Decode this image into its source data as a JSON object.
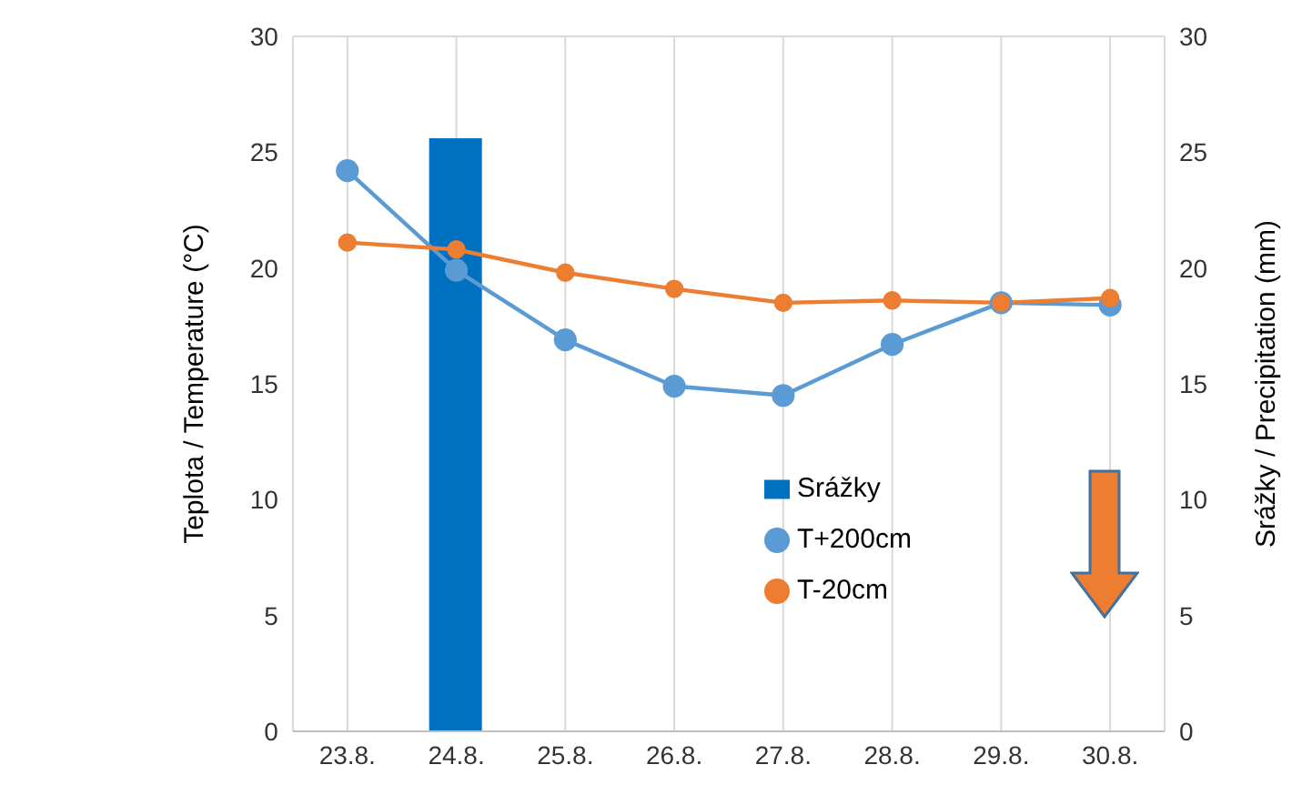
{
  "chart_data": {
    "type": "line",
    "categories": [
      "23.8.",
      "24.8.",
      "25.8.",
      "26.8.",
      "27.8.",
      "28.8.",
      "29.8.",
      "30.8."
    ],
    "ylabel": "Teplota / Temperature (°C)",
    "y2label": "Srážky / Precipitation (mm)",
    "series": [
      {
        "name": "Srážky",
        "type": "bar",
        "axis": "y2",
        "color": "#0070c0",
        "values": [
          null,
          25.6,
          null,
          null,
          null,
          null,
          null,
          null
        ]
      },
      {
        "name": "T+200cm",
        "color": "#5b9bd5",
        "values": [
          24.2,
          19.9,
          16.9,
          14.9,
          14.5,
          16.7,
          18.5,
          18.4
        ]
      },
      {
        "name": "T-20cm",
        "color": "#ed7d31",
        "values": [
          21.1,
          20.8,
          19.8,
          19.1,
          18.5,
          18.6,
          18.5,
          18.7
        ]
      }
    ],
    "ylim": [
      0,
      30
    ],
    "yticks": [
      0,
      5,
      10,
      15,
      20,
      25,
      30
    ],
    "y2lim": [
      0,
      30
    ],
    "y2ticks": [
      0,
      5,
      10,
      15,
      20,
      25,
      30
    ],
    "grid": true,
    "legend": "bottom right",
    "marker": "circle",
    "line_style": "solid"
  }
}
